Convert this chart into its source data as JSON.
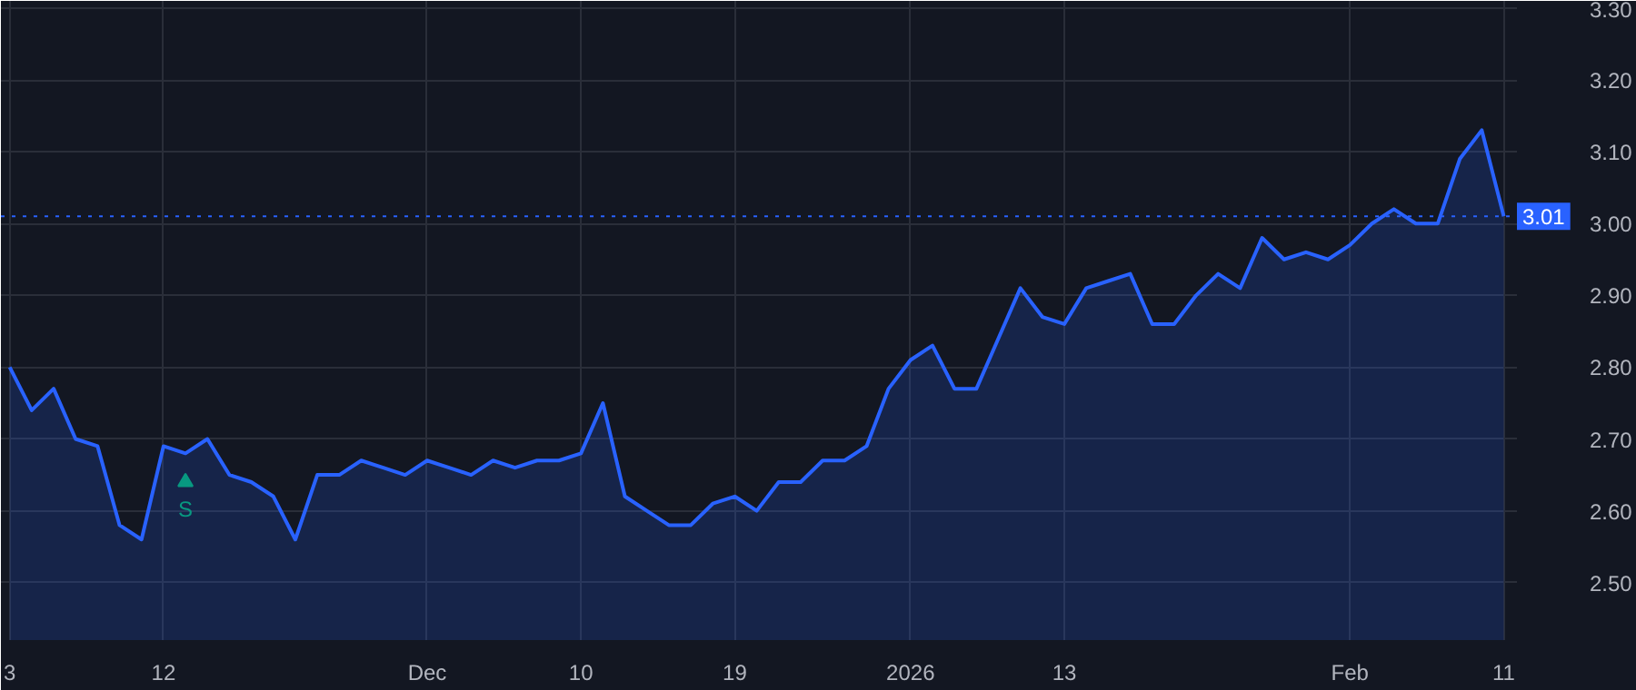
{
  "chart_data": {
    "type": "area",
    "categories": [
      "3",
      null,
      null,
      null,
      null,
      null,
      null,
      "12",
      null,
      null,
      null,
      null,
      null,
      null,
      null,
      null,
      null,
      null,
      null,
      "Dec",
      null,
      null,
      null,
      null,
      null,
      null,
      "10",
      null,
      null,
      null,
      null,
      null,
      null,
      "19",
      null,
      null,
      null,
      null,
      null,
      null,
      null,
      "2026",
      null,
      null,
      null,
      null,
      null,
      null,
      "13",
      null,
      null,
      null,
      null,
      null,
      null,
      null,
      null,
      null,
      null,
      null,
      null,
      "Feb",
      null,
      null,
      null,
      null,
      null,
      null,
      "11"
    ],
    "series": [
      {
        "color": "#2962ff",
        "values": [
          2.8,
          2.74,
          2.77,
          2.7,
          2.69,
          2.58,
          2.56,
          2.69,
          2.68,
          2.7,
          2.65,
          2.64,
          2.62,
          2.56,
          2.65,
          2.65,
          2.67,
          2.66,
          2.65,
          2.67,
          2.66,
          2.65,
          2.67,
          2.66,
          2.67,
          2.67,
          2.68,
          2.75,
          2.62,
          2.6,
          2.58,
          2.58,
          2.61,
          2.62,
          2.6,
          2.64,
          2.64,
          2.67,
          2.67,
          2.69,
          2.77,
          2.81,
          2.83,
          2.77,
          2.77,
          2.84,
          2.91,
          2.87,
          2.86,
          2.91,
          2.92,
          2.93,
          2.86,
          2.86,
          2.9,
          2.93,
          2.91,
          2.98,
          2.95,
          2.96,
          2.95,
          2.97,
          3.0,
          3.02,
          3.0,
          3.0,
          3.09,
          3.13,
          3.01
        ]
      }
    ],
    "ylim": [
      2.42,
      3.31
    ],
    "yticks": [
      {
        "value": 2.5,
        "label": "2.50"
      },
      {
        "value": 2.6,
        "label": "2.60"
      },
      {
        "value": 2.7,
        "label": "2.70"
      },
      {
        "value": 2.8,
        "label": "2.80"
      },
      {
        "value": 2.9,
        "label": "2.90"
      },
      {
        "value": 3.0,
        "label": "3.00"
      },
      {
        "value": 3.1,
        "label": "3.10"
      },
      {
        "value": 3.2,
        "label": "3.20"
      },
      {
        "value": 3.3,
        "label": "3.30"
      }
    ],
    "grid": true,
    "ref_lines": [
      {
        "axis": "y",
        "value": 3.01,
        "label": "3.01",
        "color": "#2962ff",
        "line_style": "dotted"
      }
    ],
    "annotations": [
      {
        "text": "S",
        "y": 2.64
      }
    ]
  }
}
